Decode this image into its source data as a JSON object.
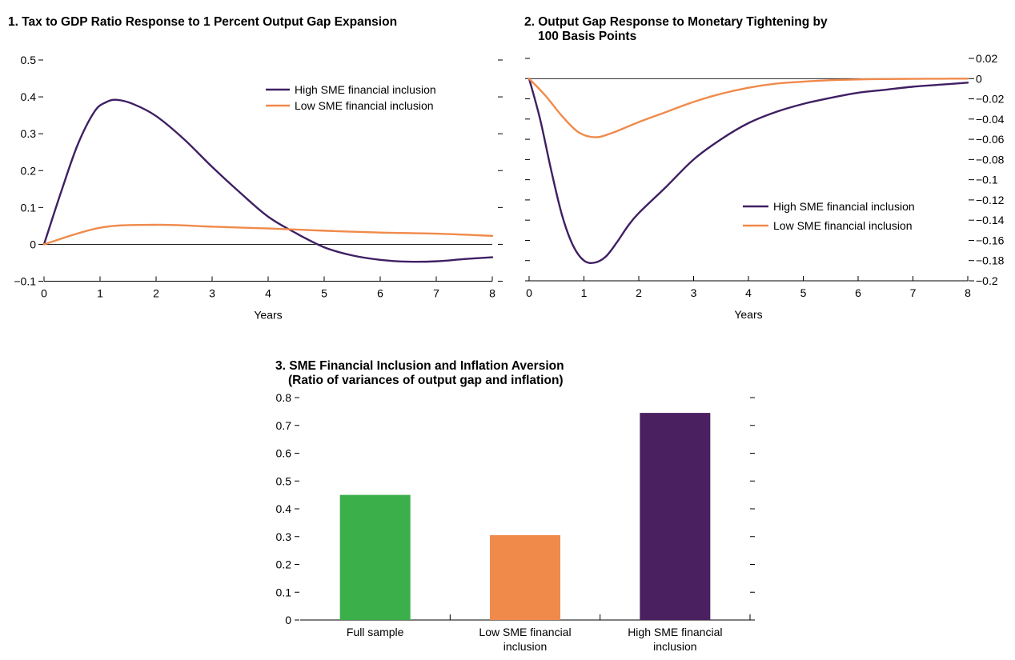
{
  "panels": {
    "p1": {
      "title": "1. Tax to GDP Ratio Response to 1 Percent Output Gap Expansion"
    },
    "p2": {
      "title_line1": "2. Output Gap Response to Monetary Tightening by",
      "title_line2": "100 Basis Points"
    },
    "p3": {
      "title_line1": "3. SME Financial Inclusion and Inflation Aversion",
      "title_line2": "(Ratio of variances of output gap and inflation)"
    }
  },
  "colors": {
    "high": "#3f1f63",
    "low": "#f08a4b",
    "full": "#3aaf4a"
  },
  "chart_data": [
    {
      "type": "line",
      "title": "1. Tax to GDP Ratio Response to 1 Percent Output Gap Expansion",
      "xlabel": "Years",
      "ylabel": "",
      "xlim": [
        0,
        8
      ],
      "ylim": [
        -0.1,
        0.5
      ],
      "x_ticks": [
        0,
        1,
        2,
        3,
        4,
        5,
        6,
        7,
        8
      ],
      "x_tick_labels": [
        "0",
        "1",
        "2",
        "3",
        "4",
        "5",
        "6",
        "7",
        "8"
      ],
      "y_ticks": [
        -0.1,
        0,
        0.1,
        0.2,
        0.3,
        0.4,
        0.5
      ],
      "y_tick_labels": [
        "−0.1",
        "0",
        "0.1",
        "0.2",
        "0.3",
        "0.4",
        "0.5"
      ],
      "y_axis_side": "left",
      "zero_line": true,
      "legend_position": "top-right",
      "series": [
        {
          "name": "High SME financial inclusion",
          "color": "#3f1f63",
          "x": [
            0,
            0.3,
            0.6,
            0.9,
            1.1,
            1.3,
            1.6,
            2.0,
            2.5,
            3.0,
            3.5,
            4.0,
            4.5,
            5.0,
            5.5,
            6.0,
            6.5,
            7.0,
            7.5,
            8.0
          ],
          "y": [
            0,
            0.14,
            0.27,
            0.36,
            0.385,
            0.392,
            0.38,
            0.348,
            0.285,
            0.21,
            0.14,
            0.075,
            0.03,
            -0.008,
            -0.03,
            -0.042,
            -0.047,
            -0.046,
            -0.04,
            -0.035
          ]
        },
        {
          "name": "Low SME financial inclusion",
          "color": "#f08a4b",
          "x": [
            0,
            1,
            2,
            3,
            4,
            5,
            6,
            7,
            8
          ],
          "y": [
            0,
            0.045,
            0.053,
            0.048,
            0.043,
            0.037,
            0.032,
            0.029,
            0.023
          ]
        }
      ]
    },
    {
      "type": "line",
      "title": "2. Output Gap Response to Monetary Tightening by 100 Basis Points",
      "xlabel": "Years",
      "ylabel": "",
      "xlim": [
        0,
        8
      ],
      "ylim": [
        -0.2,
        0.02
      ],
      "x_ticks": [
        0,
        1,
        2,
        3,
        4,
        5,
        6,
        7,
        8
      ],
      "x_tick_labels": [
        "0",
        "1",
        "2",
        "3",
        "4",
        "5",
        "6",
        "7",
        "8"
      ],
      "y_ticks": [
        -0.2,
        -0.18,
        -0.16,
        -0.14,
        -0.12,
        -0.1,
        -0.08,
        -0.06,
        -0.04,
        -0.02,
        0,
        0.02
      ],
      "y_tick_labels": [
        "−0.2",
        "−0.18",
        "−0.16",
        "−0.14",
        "−0.12",
        "−0.1",
        "−0.08",
        "−0.06",
        "−0.04",
        "−0.02",
        "0",
        "0.02"
      ],
      "y_axis_side": "right",
      "zero_line": true,
      "legend_position": "center-right",
      "series": [
        {
          "name": "High SME financial inclusion",
          "color": "#3f1f63",
          "x": [
            0,
            0.2,
            0.4,
            0.6,
            0.8,
            1.0,
            1.2,
            1.4,
            1.6,
            1.8,
            2.0,
            2.5,
            3.0,
            3.5,
            4.0,
            4.5,
            5.0,
            5.5,
            6.0,
            6.5,
            7.0,
            7.5,
            8.0
          ],
          "y": [
            0,
            -0.04,
            -0.09,
            -0.135,
            -0.165,
            -0.18,
            -0.182,
            -0.176,
            -0.162,
            -0.146,
            -0.133,
            -0.107,
            -0.08,
            -0.06,
            -0.044,
            -0.033,
            -0.025,
            -0.019,
            -0.014,
            -0.011,
            -0.008,
            -0.006,
            -0.004
          ]
        },
        {
          "name": "Low SME financial inclusion",
          "color": "#f08a4b",
          "x": [
            0,
            0.3,
            0.6,
            0.9,
            1.2,
            1.5,
            2.0,
            2.5,
            3.0,
            3.5,
            4.0,
            4.5,
            5.0,
            5.5,
            6.0,
            6.5,
            7.0,
            7.5,
            8.0
          ],
          "y": [
            0,
            -0.017,
            -0.037,
            -0.053,
            -0.058,
            -0.054,
            -0.043,
            -0.033,
            -0.023,
            -0.015,
            -0.009,
            -0.005,
            -0.003,
            -0.0015,
            -0.0008,
            -0.0004,
            -0.0002,
            -0.0001,
            0
          ]
        }
      ]
    },
    {
      "type": "bar",
      "title": "3. SME Financial Inclusion and Inflation Aversion (Ratio of variances of output gap and inflation)",
      "xlabel": "",
      "ylabel": "",
      "ylim": [
        0,
        0.8
      ],
      "y_ticks": [
        0,
        0.1,
        0.2,
        0.3,
        0.4,
        0.5,
        0.6,
        0.7,
        0.8
      ],
      "y_tick_labels": [
        "0",
        "0.1",
        "0.2",
        "0.3",
        "0.4",
        "0.5",
        "0.6",
        "0.7",
        "0.8"
      ],
      "categories": [
        [
          "Full sample"
        ],
        [
          "Low SME financial",
          "inclusion"
        ],
        [
          "High SME financial",
          "inclusion"
        ]
      ],
      "values": [
        0.45,
        0.305,
        0.745
      ],
      "colors": [
        "#3aaf4a",
        "#f08a4b",
        "#4a2060"
      ]
    }
  ]
}
